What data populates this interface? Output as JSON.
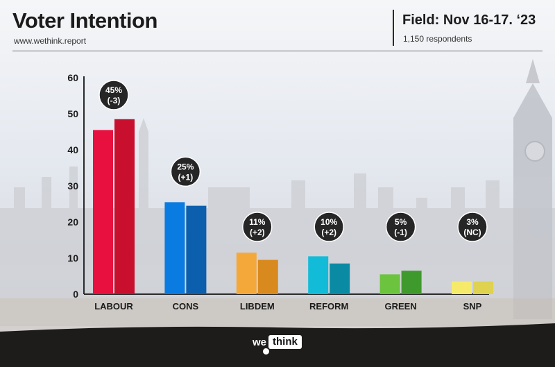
{
  "header": {
    "title": "Voter Intention",
    "url": "www.wethink.report",
    "field": "Field: Nov 16-17. ‘23",
    "respondents": "1,150 respondents"
  },
  "footer": {
    "logo_we": "we",
    "logo_think": "think"
  },
  "chart_data": {
    "type": "bar",
    "title": "Voter Intention",
    "xlabel": "",
    "ylabel": "",
    "ylim": [
      0,
      60
    ],
    "yticks": [
      0,
      10,
      20,
      30,
      40,
      50,
      60
    ],
    "grid": false,
    "categories": [
      "LABOUR",
      "CONS",
      "LIBDEM",
      "REFORM",
      "GREEN",
      "SNP"
    ],
    "series": [
      {
        "values": [
          45.5,
          25.5,
          11.5,
          10.5,
          5.5,
          3.5
        ]
      },
      {
        "values": [
          48.5,
          24.5,
          9.5,
          8.5,
          6.5,
          3.5
        ]
      }
    ],
    "colors": [
      [
        "#e8103f",
        "#c8102e"
      ],
      [
        "#0a7be0",
        "#0b5fad"
      ],
      [
        "#f5a83a",
        "#d98a1f"
      ],
      [
        "#12bcd8",
        "#0a8aa3"
      ],
      [
        "#6cc33e",
        "#3f9a2d"
      ],
      [
        "#f6ea6a",
        "#ded24e"
      ]
    ],
    "annotations": [
      {
        "value": "45%",
        "change": "(-3)"
      },
      {
        "value": "25%",
        "change": "(+1)"
      },
      {
        "value": "11%",
        "change": "(+2)"
      },
      {
        "value": "10%",
        "change": "(+2)"
      },
      {
        "value": "5%",
        "change": "(-1)"
      },
      {
        "value": "3%",
        "change": "(NC)"
      }
    ]
  }
}
